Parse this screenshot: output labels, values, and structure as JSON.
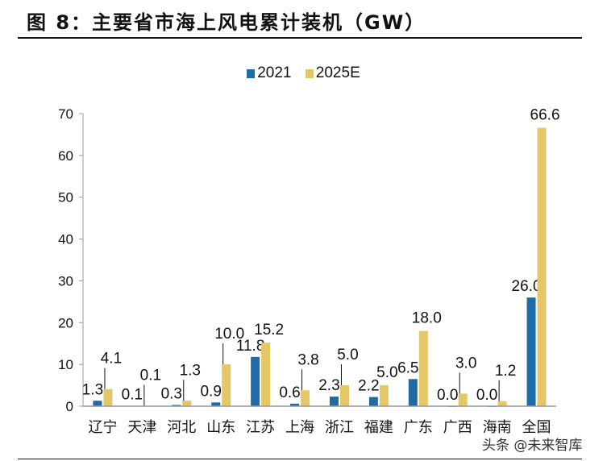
{
  "title": "图 8：主要省市海上风电累计装机（GW）",
  "watermark": "头条 @未来智库",
  "colors": {
    "s2021": "#1f6ba6",
    "s2025": "#e5c767"
  },
  "chart_data": {
    "type": "bar",
    "title": "图 8：主要省市海上风电累计装机（GW）",
    "xlabel": "",
    "ylabel": "",
    "ylim": [
      0,
      70
    ],
    "yticks": [
      0,
      10,
      20,
      30,
      40,
      50,
      60,
      70
    ],
    "legend_position": "top-center",
    "categories": [
      "辽宁",
      "天津",
      "河北",
      "山东",
      "江苏",
      "上海",
      "浙江",
      "福建",
      "广东",
      "广西",
      "海南",
      "全国"
    ],
    "series": [
      {
        "name": "2021",
        "values": [
          1.3,
          0.1,
          0.3,
          0.9,
          11.8,
          0.6,
          2.3,
          2.2,
          6.5,
          0.0,
          0.0,
          26.0
        ]
      },
      {
        "name": "2025E",
        "values": [
          4.1,
          0.1,
          1.3,
          10.0,
          15.2,
          3.8,
          5.0,
          5.0,
          18.0,
          3.0,
          1.2,
          66.6
        ]
      }
    ]
  }
}
